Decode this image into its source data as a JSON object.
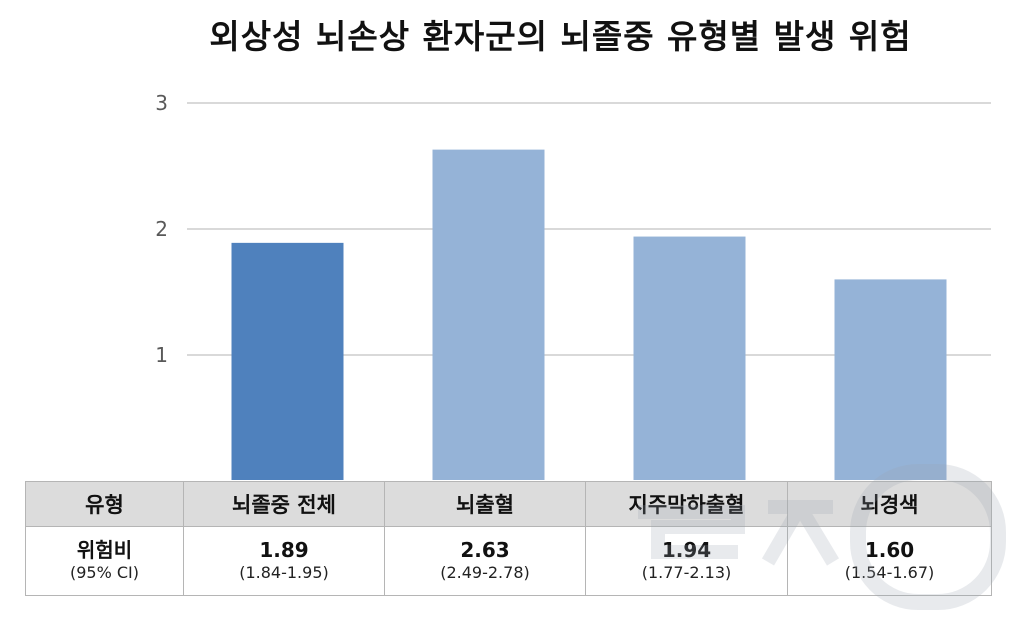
{
  "chart_data": {
    "type": "bar",
    "title": "외상성 뇌손상 환자군의 뇌졸중 유형별 발생 위험",
    "categories": [
      "뇌졸중 전체",
      "뇌출혈",
      "지주막하출혈",
      "뇌경색"
    ],
    "values": [
      1.89,
      2.63,
      1.94,
      1.6
    ],
    "ylim": [
      0,
      3
    ],
    "yticks": [
      1,
      2,
      3
    ],
    "grid": true,
    "colors": [
      "#4f81bd",
      "#95b3d7",
      "#95b3d7",
      "#95b3d7"
    ]
  },
  "table": {
    "header_label": "유형",
    "row_label": "위험비",
    "row_sublabel": "(95% CI)",
    "columns": [
      {
        "name": "뇌졸중 전체",
        "value": "1.89",
        "ci": "(1.84-1.95)"
      },
      {
        "name": "뇌출혈",
        "value": "2.63",
        "ci": "(2.49-2.78)"
      },
      {
        "name": "지주막하출혈",
        "value": "1.94",
        "ci": "(1.77-2.13)"
      },
      {
        "name": "뇌경색",
        "value": "1.60",
        "ci": "(1.54-1.67)"
      }
    ]
  }
}
